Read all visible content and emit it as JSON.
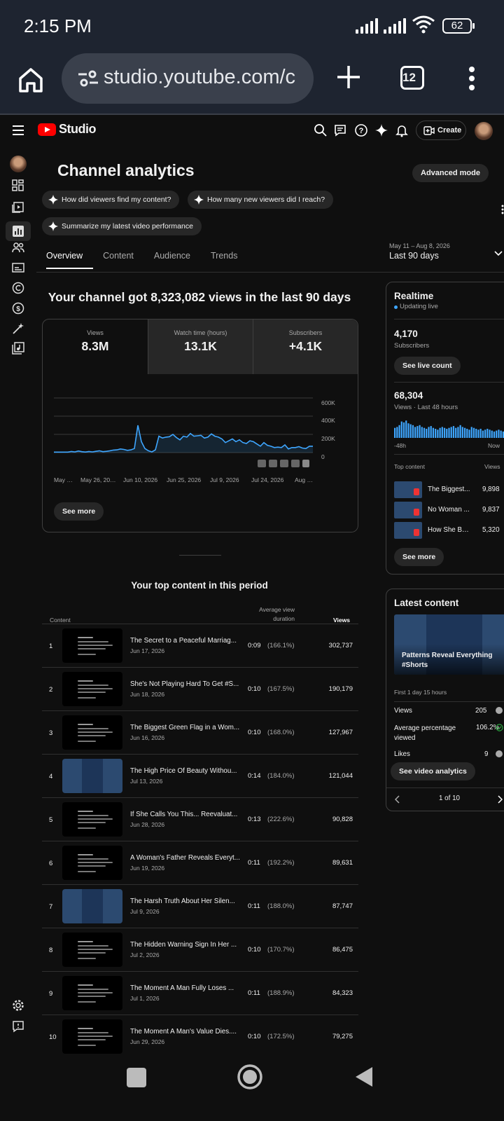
{
  "status_bar": {
    "time": "2:15 PM",
    "battery": "62"
  },
  "browser": {
    "url": "studio.youtube.com/c",
    "tab_count": "12"
  },
  "studio": {
    "logo_text": "Studio",
    "create_label": "Create"
  },
  "page": {
    "title": "Channel analytics",
    "advanced_mode": "Advanced mode",
    "chips": [
      "How did viewers find my content?",
      "How many new viewers did I reach?",
      "Summarize my latest video performance"
    ],
    "tabs": [
      "Overview",
      "Content",
      "Audience",
      "Trends"
    ],
    "date_range_label": "May 11 – Aug 8, 2026",
    "date_range_value": "Last 90 days"
  },
  "overview": {
    "headline": "Your channel got 8,323,082 views in the last 90 days",
    "metrics": [
      {
        "label": "Views",
        "value": "8.3M"
      },
      {
        "label": "Watch time (hours)",
        "value": "13.1K"
      },
      {
        "label": "Subscribers",
        "value": "+4.1K"
      }
    ],
    "see_more": "See more"
  },
  "chart_data": {
    "type": "area",
    "series": [
      {
        "name": "Views",
        "color": "#3ea6ff",
        "values": [
          5,
          5,
          5,
          5,
          5,
          12,
          8,
          18,
          10,
          6,
          12,
          8,
          14,
          20,
          10,
          14,
          20,
          28,
          30,
          40,
          35,
          25,
          30,
          45,
          300,
          120,
          45,
          20,
          8,
          30,
          180,
          160,
          170,
          175,
          200,
          165,
          140,
          180,
          170,
          210,
          180,
          185,
          190,
          160,
          170,
          205,
          180,
          170,
          150,
          110,
          130,
          150,
          120,
          140,
          110,
          100,
          130,
          120,
          95,
          70,
          110,
          80,
          70,
          55,
          60,
          55,
          85,
          40,
          55,
          55,
          65,
          50,
          45,
          70,
          70
        ]
      }
    ],
    "xticks": [
      "May …",
      "May 26, 20…",
      "Jun 10, 2026",
      "Jun 25, 2026",
      "Jul 9, 2026",
      "Jul 24, 2026",
      "Aug …"
    ],
    "yticks": [
      "600K",
      "400K",
      "200K",
      "0"
    ],
    "ylim": [
      0,
      600000
    ],
    "grid": true
  },
  "top_content": {
    "title": "Your top content in this period",
    "headers": {
      "content": "Content",
      "avg": "Average view duration",
      "views": "Views"
    },
    "rows": [
      {
        "n": "1",
        "title": "The Secret to a Peaceful Marriag...",
        "date": "Jun 17, 2026",
        "dur": "0:09",
        "pct": "(166.1%)",
        "views": "302,737",
        "thumb": "dark"
      },
      {
        "n": "2",
        "title": "She's Not Playing Hard To Get #S...",
        "date": "Jun 18, 2026",
        "dur": "0:10",
        "pct": "(167.5%)",
        "views": "190,179",
        "thumb": "dark"
      },
      {
        "n": "3",
        "title": "The Biggest Green Flag in a Wom...",
        "date": "Jun 16, 2026",
        "dur": "0:10",
        "pct": "(168.0%)",
        "views": "127,967",
        "thumb": "dark"
      },
      {
        "n": "4",
        "title": "The High Price Of Beauty Withou...",
        "date": "Jul 13, 2026",
        "dur": "0:14",
        "pct": "(184.0%)",
        "views": "121,044",
        "thumb": "blue"
      },
      {
        "n": "5",
        "title": "If She Calls You This... Reevaluat...",
        "date": "Jun 28, 2026",
        "dur": "0:13",
        "pct": "(222.6%)",
        "views": "90,828",
        "thumb": "dark"
      },
      {
        "n": "6",
        "title": "A Woman's Father Reveals Everyt...",
        "date": "Jun 19, 2026",
        "dur": "0:11",
        "pct": "(192.2%)",
        "views": "89,631",
        "thumb": "dark"
      },
      {
        "n": "7",
        "title": "The Harsh Truth About Her Silen...",
        "date": "Jul 9, 2026",
        "dur": "0:11",
        "pct": "(188.0%)",
        "views": "87,747",
        "thumb": "blue"
      },
      {
        "n": "8",
        "title": "The Hidden Warning Sign In Her ...",
        "date": "Jul 2, 2026",
        "dur": "0:10",
        "pct": "(170.7%)",
        "views": "86,475",
        "thumb": "dark"
      },
      {
        "n": "9",
        "title": "The Moment A Man Fully Loses ...",
        "date": "Jul 1, 2026",
        "dur": "0:11",
        "pct": "(188.9%)",
        "views": "84,323",
        "thumb": "dark"
      },
      {
        "n": "10",
        "title": "The Moment A Man's Value Dies....",
        "date": "Jun 29, 2026",
        "dur": "0:10",
        "pct": "(172.5%)",
        "views": "79,275",
        "thumb": "dark"
      }
    ]
  },
  "realtime": {
    "title": "Realtime",
    "live": "Updating live",
    "subs": "4,170",
    "subs_label": "Subscribers",
    "live_count_btn": "See live count",
    "views": "68,304",
    "views_label": "Views · Last 48 hours",
    "bars": [
      0.55,
      0.6,
      0.7,
      0.9,
      0.85,
      0.95,
      0.8,
      0.75,
      0.7,
      0.6,
      0.65,
      0.7,
      0.6,
      0.55,
      0.5,
      0.6,
      0.65,
      0.55,
      0.5,
      0.45,
      0.55,
      0.6,
      0.55,
      0.5,
      0.55,
      0.6,
      0.65,
      0.55,
      0.6,
      0.7,
      0.6,
      0.55,
      0.5,
      0.45,
      0.6,
      0.55,
      0.5,
      0.45,
      0.5,
      0.4,
      0.45,
      0.5,
      0.45,
      0.4,
      0.35,
      0.4,
      0.45,
      0.4,
      0.35
    ],
    "x_start": "-48h",
    "x_end": "Now",
    "top_content_label": "Top content",
    "views_col": "Views",
    "items": [
      {
        "title": "The Biggest...",
        "views": "9,898"
      },
      {
        "title": "No Woman ...",
        "views": "9,837"
      },
      {
        "title": "How She Be...",
        "views": "5,320"
      }
    ],
    "see_more": "See more"
  },
  "latest": {
    "title": "Latest content",
    "video_title": "Patterns Reveal Everything #Shorts",
    "since": "First 1 day 15 hours",
    "stats": [
      {
        "label": "Views",
        "value": "205"
      },
      {
        "label": "Average percentage viewed",
        "value": "106.2%"
      },
      {
        "label": "Likes",
        "value": "9"
      }
    ],
    "btn": "See video analytics",
    "pager": "1 of 10"
  }
}
